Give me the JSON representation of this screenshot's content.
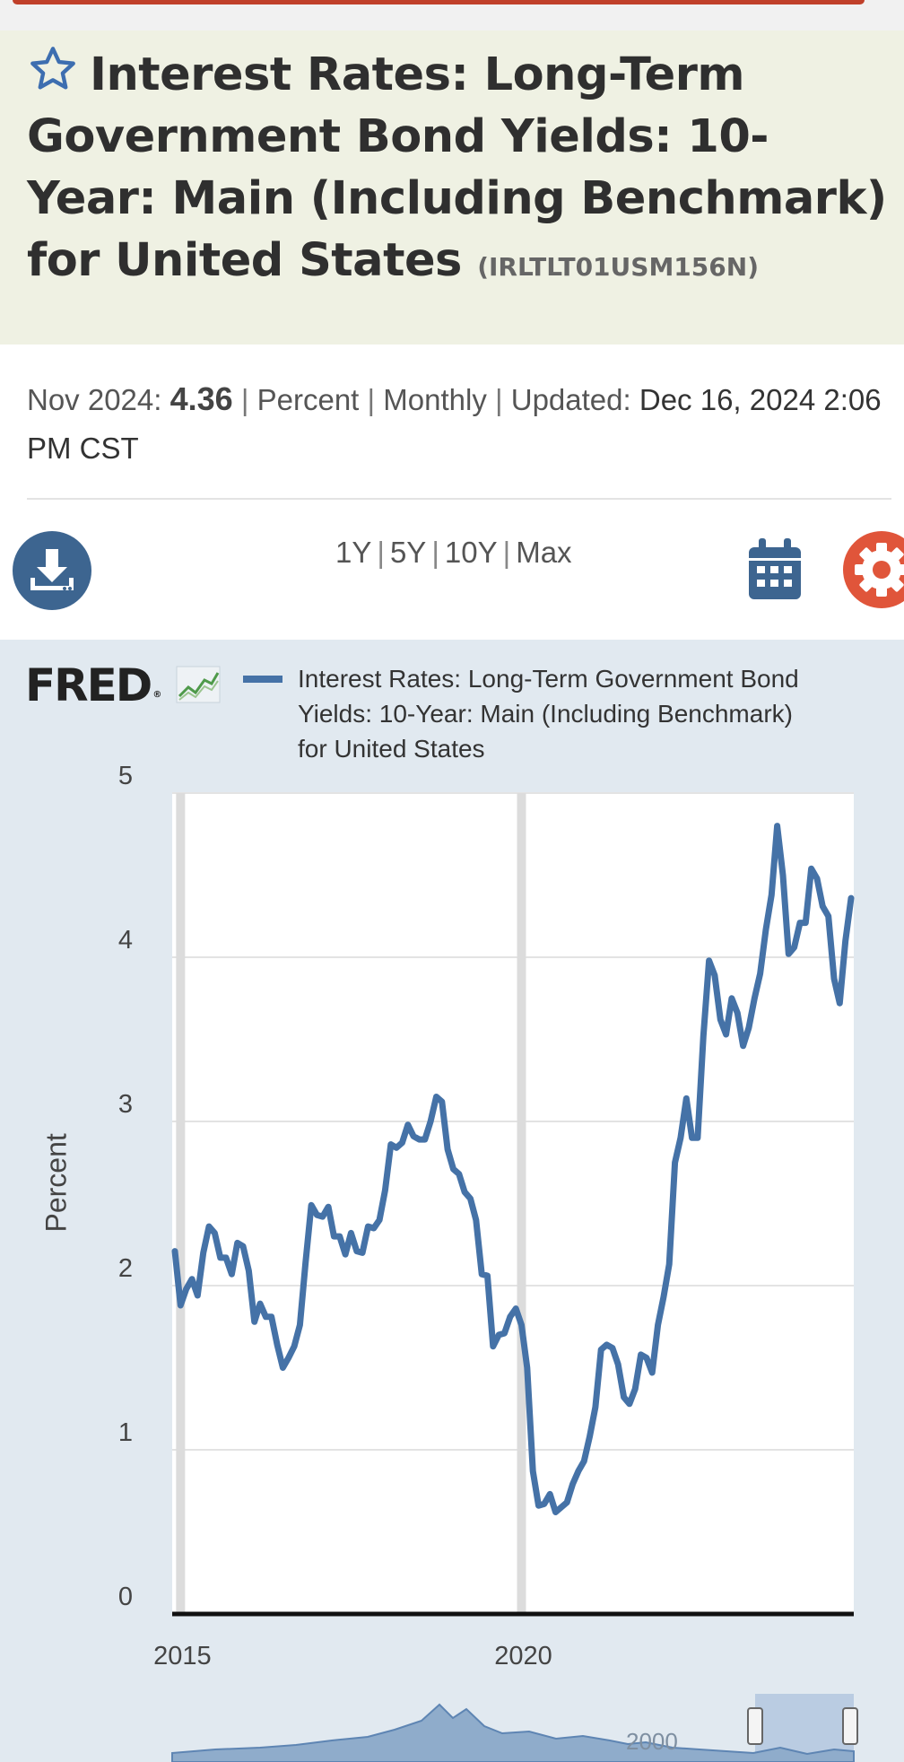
{
  "header": {
    "title": "Interest Rates: Long-Term Government Bond Yields: 10-Year: Main (Including Benchmark) for United States",
    "series_id": "(IRLTLT01USM156N)"
  },
  "meta": {
    "date_label": "Nov 2024:",
    "value": "4.36",
    "separator": "|",
    "units": "Percent",
    "frequency": "Monthly",
    "updated_label": "Updated:",
    "updated_value": "Dec 16, 2024 2:06 PM CST"
  },
  "controls": {
    "ranges": [
      "1Y",
      "5Y",
      "10Y",
      "Max"
    ],
    "download_icon": "download-icon",
    "calendar_icon": "calendar-icon",
    "settings_icon": "gear-icon"
  },
  "brand": {
    "logo_text": "FRED"
  },
  "colors": {
    "accent": "#c0402a",
    "series": "#4572a7",
    "title_bg": "#eff1e3",
    "chart_bg": "#e1e9f0",
    "icon_blue": "#3d6590",
    "gear": "#e0553a"
  },
  "chart_data": {
    "type": "line",
    "legend": [
      "Interest Rates: Long-Term Government Bond Yields: 10-Year: Main (Including Benchmark) for United States"
    ],
    "ylabel": "Percent",
    "ylim": [
      0,
      5
    ],
    "yticks": [
      "0",
      "1",
      "2",
      "3",
      "4",
      "5"
    ],
    "xticks": [
      "2015",
      "2020"
    ],
    "xlim": [
      "2014-12",
      "2024-11"
    ],
    "grid": true,
    "series": [
      {
        "name": "Interest Rates: Long-Term Government Bond Yields: 10-Year: Main (Including Benchmark) for United States",
        "x": [
          "2014-12",
          "2015-01",
          "2015-02",
          "2015-03",
          "2015-04",
          "2015-05",
          "2015-06",
          "2015-07",
          "2015-08",
          "2015-09",
          "2015-10",
          "2015-11",
          "2015-12",
          "2016-01",
          "2016-02",
          "2016-03",
          "2016-04",
          "2016-05",
          "2016-06",
          "2016-07",
          "2016-08",
          "2016-09",
          "2016-10",
          "2016-11",
          "2016-12",
          "2017-01",
          "2017-02",
          "2017-03",
          "2017-04",
          "2017-05",
          "2017-06",
          "2017-07",
          "2017-08",
          "2017-09",
          "2017-10",
          "2017-11",
          "2017-12",
          "2018-01",
          "2018-02",
          "2018-03",
          "2018-04",
          "2018-05",
          "2018-06",
          "2018-07",
          "2018-08",
          "2018-09",
          "2018-10",
          "2018-11",
          "2018-12",
          "2019-01",
          "2019-02",
          "2019-03",
          "2019-04",
          "2019-05",
          "2019-06",
          "2019-07",
          "2019-08",
          "2019-09",
          "2019-10",
          "2019-11",
          "2019-12",
          "2020-01",
          "2020-02",
          "2020-03",
          "2020-04",
          "2020-05",
          "2020-06",
          "2020-07",
          "2020-08",
          "2020-09",
          "2020-10",
          "2020-11",
          "2020-12",
          "2021-01",
          "2021-02",
          "2021-03",
          "2021-04",
          "2021-05",
          "2021-06",
          "2021-07",
          "2021-08",
          "2021-09",
          "2021-10",
          "2021-11",
          "2021-12",
          "2022-01",
          "2022-02",
          "2022-03",
          "2022-04",
          "2022-05",
          "2022-06",
          "2022-07",
          "2022-08",
          "2022-09",
          "2022-10",
          "2022-11",
          "2022-12",
          "2023-01",
          "2023-02",
          "2023-03",
          "2023-04",
          "2023-05",
          "2023-06",
          "2023-07",
          "2023-08",
          "2023-09",
          "2023-10",
          "2023-11",
          "2023-12",
          "2024-01",
          "2024-02",
          "2024-03",
          "2024-04",
          "2024-05",
          "2024-06",
          "2024-07",
          "2024-08",
          "2024-09",
          "2024-10",
          "2024-11"
        ],
        "values": [
          2.21,
          1.88,
          1.98,
          2.04,
          1.94,
          2.2,
          2.36,
          2.32,
          2.17,
          2.17,
          2.07,
          2.26,
          2.24,
          2.09,
          1.78,
          1.89,
          1.81,
          1.81,
          1.64,
          1.5,
          1.56,
          1.63,
          1.76,
          2.14,
          2.49,
          2.43,
          2.42,
          2.48,
          2.3,
          2.3,
          2.19,
          2.32,
          2.21,
          2.2,
          2.36,
          2.35,
          2.4,
          2.58,
          2.86,
          2.84,
          2.87,
          2.98,
          2.91,
          2.89,
          2.89,
          3.0,
          3.15,
          3.12,
          2.83,
          2.71,
          2.68,
          2.57,
          2.53,
          2.4,
          2.07,
          2.06,
          1.63,
          1.7,
          1.71,
          1.81,
          1.86,
          1.76,
          1.5,
          0.87,
          0.66,
          0.67,
          0.73,
          0.62,
          0.65,
          0.68,
          0.79,
          0.87,
          0.93,
          1.08,
          1.26,
          1.61,
          1.64,
          1.62,
          1.52,
          1.32,
          1.28,
          1.37,
          1.58,
          1.56,
          1.47,
          1.76,
          1.93,
          2.13,
          2.75,
          2.9,
          3.14,
          2.9,
          2.9,
          3.52,
          3.98,
          3.89,
          3.62,
          3.53,
          3.75,
          3.66,
          3.46,
          3.57,
          3.75,
          3.9,
          4.17,
          4.38,
          4.8,
          4.5,
          4.02,
          4.06,
          4.21,
          4.21,
          4.54,
          4.48,
          4.31,
          4.25,
          3.87,
          3.72,
          4.1,
          4.36
        ]
      }
    ]
  },
  "navigator": {
    "label": "2000"
  }
}
